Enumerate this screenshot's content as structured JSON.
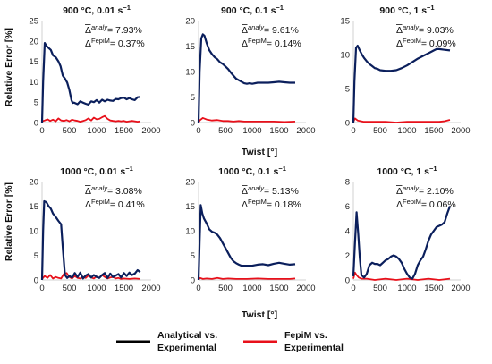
{
  "figure": {
    "ylabel": "Relative Error [%]",
    "xlabel": "Twist [°]",
    "legend": [
      {
        "line1": "Analytical vs.",
        "line2": "Experimental",
        "color": "#000000"
      },
      {
        "line1": "FepiM vs.",
        "line2": "Experimental",
        "color": "#e8101a"
      }
    ]
  },
  "colors": {
    "analytical": "#0b1f5c",
    "fepim": "#e8101a",
    "axis": "#d0d0d0"
  },
  "chart_data": [
    {
      "type": "line",
      "title": "900 °C, 0.01 s",
      "title_sup": "−1",
      "ann1_label": "analy",
      "ann1_value": "= 7.93%",
      "ann2_label": "FepiM",
      "ann2_value": "= 0.37%",
      "xlim": [
        0,
        2000
      ],
      "ylim": [
        0,
        25
      ],
      "xticks": [
        "0",
        "500",
        "1000",
        "1500",
        "2000"
      ],
      "yticks": [
        "0",
        "5",
        "10",
        "15",
        "20",
        "25"
      ],
      "series": [
        {
          "key": "analytical",
          "x": [
            0,
            20,
            50,
            80,
            120,
            160,
            200,
            250,
            300,
            340,
            380,
            420,
            460,
            500,
            540,
            560,
            580,
            600,
            650,
            700,
            750,
            800,
            850,
            900,
            950,
            1000,
            1050,
            1100,
            1150,
            1200,
            1250,
            1300,
            1350,
            1400,
            1450,
            1500,
            1550,
            1600,
            1650,
            1700,
            1750,
            1800
          ],
          "y": [
            0,
            10,
            19.5,
            18.8,
            18.3,
            17.8,
            16.5,
            16.0,
            15.0,
            13.8,
            11.5,
            10.8,
            9.8,
            8.0,
            5.5,
            4.8,
            4.9,
            4.8,
            4.5,
            5.2,
            4.9,
            4.6,
            4.4,
            5.2,
            5.0,
            5.5,
            4.9,
            5.6,
            5.2,
            5.6,
            5.4,
            5.3,
            5.8,
            5.7,
            6.0,
            6.1,
            5.7,
            6.0,
            5.7,
            5.5,
            6.2,
            6.3
          ]
        },
        {
          "key": "fepim",
          "x": [
            0,
            50,
            100,
            150,
            200,
            250,
            300,
            350,
            400,
            450,
            500,
            550,
            600,
            650,
            700,
            750,
            800,
            850,
            900,
            950,
            1000,
            1050,
            1100,
            1150,
            1200,
            1250,
            1300,
            1350,
            1400,
            1450,
            1500,
            1550,
            1600,
            1650,
            1700,
            1750,
            1800
          ],
          "y": [
            0.3,
            0.5,
            0.8,
            0.4,
            0.7,
            0.3,
            1.0,
            0.5,
            0.4,
            0.6,
            0.3,
            0.7,
            0.5,
            0.4,
            0.2,
            0.4,
            0.6,
            1.0,
            0.5,
            1.2,
            0.8,
            0.9,
            1.3,
            1.6,
            0.9,
            0.5,
            0.4,
            0.3,
            0.4,
            0.3,
            0.4,
            0.2,
            0.3,
            0.4,
            0.3,
            0.2,
            0.3
          ]
        }
      ]
    },
    {
      "type": "line",
      "title": "900 °C, 0.1 s",
      "title_sup": "−1",
      "ann1_label": "analy",
      "ann1_value": "= 9.61%",
      "ann2_label": "FepiM",
      "ann2_value": "= 0.14%",
      "xlim": [
        0,
        2000
      ],
      "ylim": [
        0,
        20
      ],
      "xticks": [
        "0",
        "500",
        "1000",
        "1500",
        "2000"
      ],
      "yticks": [
        "0",
        "5",
        "10",
        "15",
        "20"
      ],
      "series": [
        {
          "key": "analytical",
          "x": [
            0,
            20,
            50,
            80,
            110,
            150,
            200,
            250,
            300,
            350,
            400,
            450,
            500,
            550,
            600,
            650,
            700,
            750,
            800,
            850,
            900,
            950,
            1000,
            1100,
            1200,
            1300,
            1400,
            1500,
            1600,
            1700,
            1800
          ],
          "y": [
            0,
            10,
            16.5,
            17.3,
            17.0,
            15.6,
            14.2,
            13.4,
            12.8,
            12.4,
            11.8,
            11.5,
            11.0,
            10.5,
            9.8,
            9.2,
            8.6,
            8.3,
            8.0,
            7.7,
            7.6,
            7.7,
            7.6,
            7.8,
            7.8,
            7.8,
            7.9,
            8.0,
            7.9,
            7.8,
            7.8
          ]
        },
        {
          "key": "fepim",
          "x": [
            0,
            30,
            80,
            150,
            250,
            350,
            450,
            550,
            650,
            750,
            850,
            1000,
            1200,
            1400,
            1600,
            1800
          ],
          "y": [
            0.1,
            0.5,
            0.9,
            0.6,
            0.4,
            0.5,
            0.3,
            0.3,
            0.2,
            0.3,
            0.2,
            0.2,
            0.2,
            0.2,
            0.1,
            0.2
          ]
        }
      ]
    },
    {
      "type": "line",
      "title": "900 °C, 1 s",
      "title_sup": "−1",
      "ann1_label": "analy",
      "ann1_value": "= 9.03%",
      "ann2_label": "FepiM",
      "ann2_value": "= 0.09%",
      "xlim": [
        0,
        2000
      ],
      "ylim": [
        0,
        15
      ],
      "xticks": [
        "0",
        "500",
        "1000",
        "1500",
        "2000"
      ],
      "yticks": [
        "0",
        "5",
        "10",
        "15"
      ],
      "series": [
        {
          "key": "analytical",
          "x": [
            0,
            20,
            50,
            80,
            120,
            160,
            200,
            250,
            300,
            350,
            400,
            450,
            500,
            600,
            700,
            800,
            900,
            1000,
            1100,
            1200,
            1300,
            1400,
            1500,
            1550,
            1600,
            1700,
            1800
          ],
          "y": [
            0,
            6,
            11.0,
            11.3,
            10.6,
            10.0,
            9.5,
            9.0,
            8.6,
            8.3,
            8.0,
            7.9,
            7.7,
            7.6,
            7.6,
            7.7,
            8.0,
            8.4,
            8.9,
            9.4,
            9.8,
            10.2,
            10.6,
            10.8,
            10.8,
            10.7,
            10.6
          ]
        },
        {
          "key": "fepim",
          "x": [
            0,
            30,
            80,
            200,
            400,
            600,
            800,
            1000,
            1200,
            1400,
            1600,
            1700,
            1800
          ],
          "y": [
            0.1,
            0.6,
            0.3,
            0.1,
            0.1,
            0.1,
            0.0,
            0.1,
            0.1,
            0.1,
            0.1,
            0.2,
            0.4
          ]
        }
      ]
    },
    {
      "type": "line",
      "title": "1000 °C, 0.01 s",
      "title_sup": "−1",
      "ann1_label": "analy",
      "ann1_value": "= 3.08%",
      "ann2_label": "FepiM",
      "ann2_value": "= 0.41%",
      "xlim": [
        0,
        2000
      ],
      "ylim": [
        0,
        20
      ],
      "xticks": [
        "0",
        "500",
        "1000",
        "1500",
        "2000"
      ],
      "yticks": [
        "0",
        "5",
        "10",
        "15",
        "20"
      ],
      "series": [
        {
          "key": "analytical",
          "x": [
            0,
            20,
            40,
            80,
            120,
            160,
            200,
            250,
            300,
            350,
            380,
            420,
            460,
            500,
            550,
            600,
            650,
            700,
            750,
            800,
            850,
            900,
            950,
            1000,
            1050,
            1100,
            1150,
            1200,
            1250,
            1300,
            1350,
            1400,
            1450,
            1500,
            1550,
            1600,
            1650,
            1700,
            1750,
            1800
          ],
          "y": [
            0,
            10,
            16.0,
            15.8,
            15.0,
            14.5,
            13.5,
            12.8,
            12.0,
            11.3,
            6.5,
            1.0,
            0.4,
            0.8,
            0.5,
            1.4,
            0.6,
            1.5,
            0.3,
            0.9,
            1.2,
            0.5,
            1.0,
            0.6,
            0.4,
            1.0,
            1.4,
            0.4,
            1.3,
            0.6,
            0.9,
            1.2,
            0.5,
            1.4,
            0.8,
            1.5,
            1.0,
            1.3,
            2.0,
            1.6
          ]
        },
        {
          "key": "fepim",
          "x": [
            0,
            50,
            100,
            150,
            200,
            250,
            300,
            350,
            400,
            450,
            500,
            550,
            600,
            650,
            700,
            750,
            800,
            850,
            900,
            950,
            1000,
            1050,
            1100,
            1150,
            1200,
            1250,
            1300,
            1350,
            1400,
            1450,
            1500,
            1600,
            1700,
            1800
          ],
          "y": [
            0.2,
            0.8,
            0.4,
            1.0,
            0.3,
            0.6,
            0.4,
            0.3,
            1.2,
            1.4,
            0.6,
            0.3,
            0.8,
            0.4,
            0.3,
            0.6,
            0.4,
            0.9,
            0.5,
            0.3,
            0.7,
            0.4,
            1.0,
            0.6,
            0.3,
            0.5,
            0.6,
            0.3,
            0.4,
            0.2,
            0.3,
            0.2,
            0.3,
            0.2
          ]
        }
      ]
    },
    {
      "type": "line",
      "title": "1000 °C, 0.1 s",
      "title_sup": "−1",
      "ann1_label": "analy",
      "ann1_value": "= 5.13%",
      "ann2_label": "FepiM",
      "ann2_value": "= 0.18%",
      "xlim": [
        0,
        2000
      ],
      "ylim": [
        0,
        20
      ],
      "xticks": [
        "0",
        "500",
        "1000",
        "1500",
        "2000"
      ],
      "yticks": [
        "0",
        "5",
        "10",
        "15",
        "20"
      ],
      "series": [
        {
          "key": "analytical",
          "x": [
            0,
            20,
            40,
            70,
            100,
            150,
            200,
            250,
            300,
            350,
            400,
            450,
            500,
            550,
            600,
            650,
            700,
            750,
            800,
            900,
            1000,
            1100,
            1200,
            1300,
            1400,
            1500,
            1600,
            1700,
            1800
          ],
          "y": [
            0,
            8,
            15.2,
            13.5,
            12.5,
            11.5,
            10.3,
            9.8,
            9.6,
            9.2,
            8.5,
            7.5,
            6.5,
            5.5,
            4.5,
            3.8,
            3.4,
            3.1,
            2.9,
            2.9,
            2.9,
            3.1,
            3.2,
            3.0,
            3.3,
            3.5,
            3.3,
            3.1,
            3.2
          ]
        },
        {
          "key": "fepim",
          "x": [
            0,
            30,
            80,
            150,
            250,
            350,
            450,
            550,
            700,
            900,
            1100,
            1300,
            1500,
            1700,
            1800
          ],
          "y": [
            0.1,
            0.4,
            0.2,
            0.3,
            0.2,
            0.4,
            0.2,
            0.3,
            0.2,
            0.2,
            0.3,
            0.2,
            0.2,
            0.2,
            0.3
          ]
        }
      ]
    },
    {
      "type": "line",
      "title": "1000 °C, 1 s",
      "title_sup": "−1",
      "ann1_label": "analy",
      "ann1_value": "= 2.10%",
      "ann2_label": "FepiM",
      "ann2_value": "= 0.06%",
      "xlim": [
        0,
        2000
      ],
      "ylim": [
        0,
        8
      ],
      "xticks": [
        "0",
        "500",
        "1000",
        "1500",
        "2000"
      ],
      "yticks": [
        "0",
        "2",
        "4",
        "6",
        "8"
      ],
      "series": [
        {
          "key": "analytical",
          "x": [
            0,
            30,
            60,
            90,
            120,
            150,
            200,
            250,
            300,
            350,
            400,
            450,
            500,
            550,
            600,
            650,
            700,
            750,
            800,
            850,
            900,
            950,
            1000,
            1050,
            1100,
            1150,
            1200,
            1250,
            1300,
            1350,
            1400,
            1450,
            1500,
            1550,
            1600,
            1650,
            1700,
            1750,
            1800
          ],
          "y": [
            0.3,
            3.0,
            5.5,
            3.8,
            1.8,
            0.4,
            0.2,
            0.5,
            1.2,
            1.4,
            1.3,
            1.3,
            1.2,
            1.4,
            1.6,
            1.7,
            1.9,
            2.0,
            1.9,
            1.7,
            1.4,
            0.9,
            0.5,
            0.2,
            0.1,
            0.5,
            1.2,
            1.6,
            1.9,
            2.5,
            3.2,
            3.7,
            4.0,
            4.3,
            4.4,
            4.5,
            4.7,
            5.4,
            6.0
          ]
        },
        {
          "key": "fepim",
          "x": [
            0,
            30,
            60,
            100,
            150,
            250,
            400,
            600,
            800,
            1000,
            1200,
            1400,
            1600,
            1800
          ],
          "y": [
            0.1,
            0.6,
            0.4,
            0.2,
            0.1,
            0.1,
            0.0,
            0.1,
            0.0,
            0.1,
            0.0,
            0.1,
            0.0,
            0.1
          ]
        }
      ]
    }
  ]
}
